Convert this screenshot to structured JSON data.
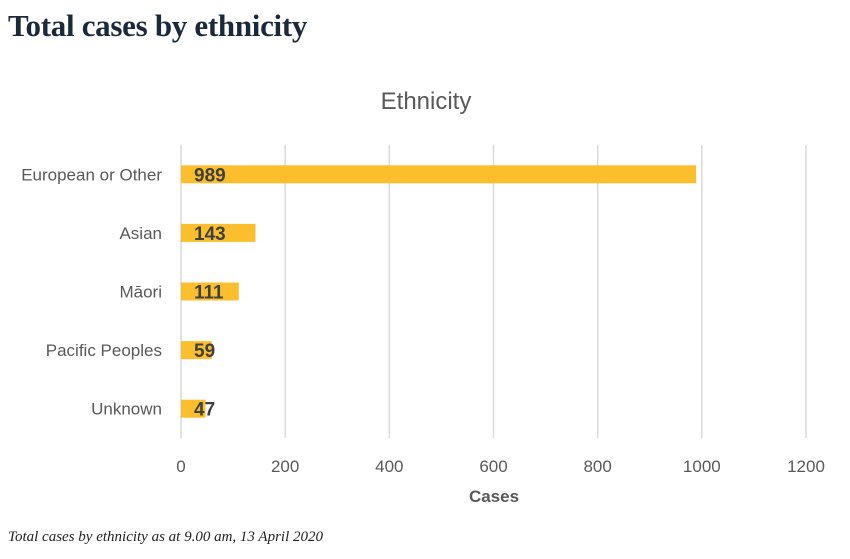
{
  "page": {
    "heading": "Total cases by ethnicity",
    "caption": "Total cases by ethnicity as at 9.00 am, 13 April 2020"
  },
  "colors": {
    "bar": "#fbbf2d",
    "grid": "#d9d9d9",
    "text": "#595959",
    "label": "#404040"
  },
  "chart_data": {
    "type": "bar",
    "orientation": "horizontal",
    "title": "Ethnicity",
    "xlabel": "Cases",
    "ylabel": "",
    "categories": [
      "European or Other",
      "Asian",
      "Māori",
      "Pacific Peoples",
      "Unknown"
    ],
    "values": [
      989,
      143,
      111,
      59,
      47
    ],
    "xlim": [
      0,
      1200
    ],
    "x_ticks": [
      0,
      200,
      400,
      600,
      800,
      1000,
      1200
    ],
    "grid": true,
    "legend": "none"
  }
}
